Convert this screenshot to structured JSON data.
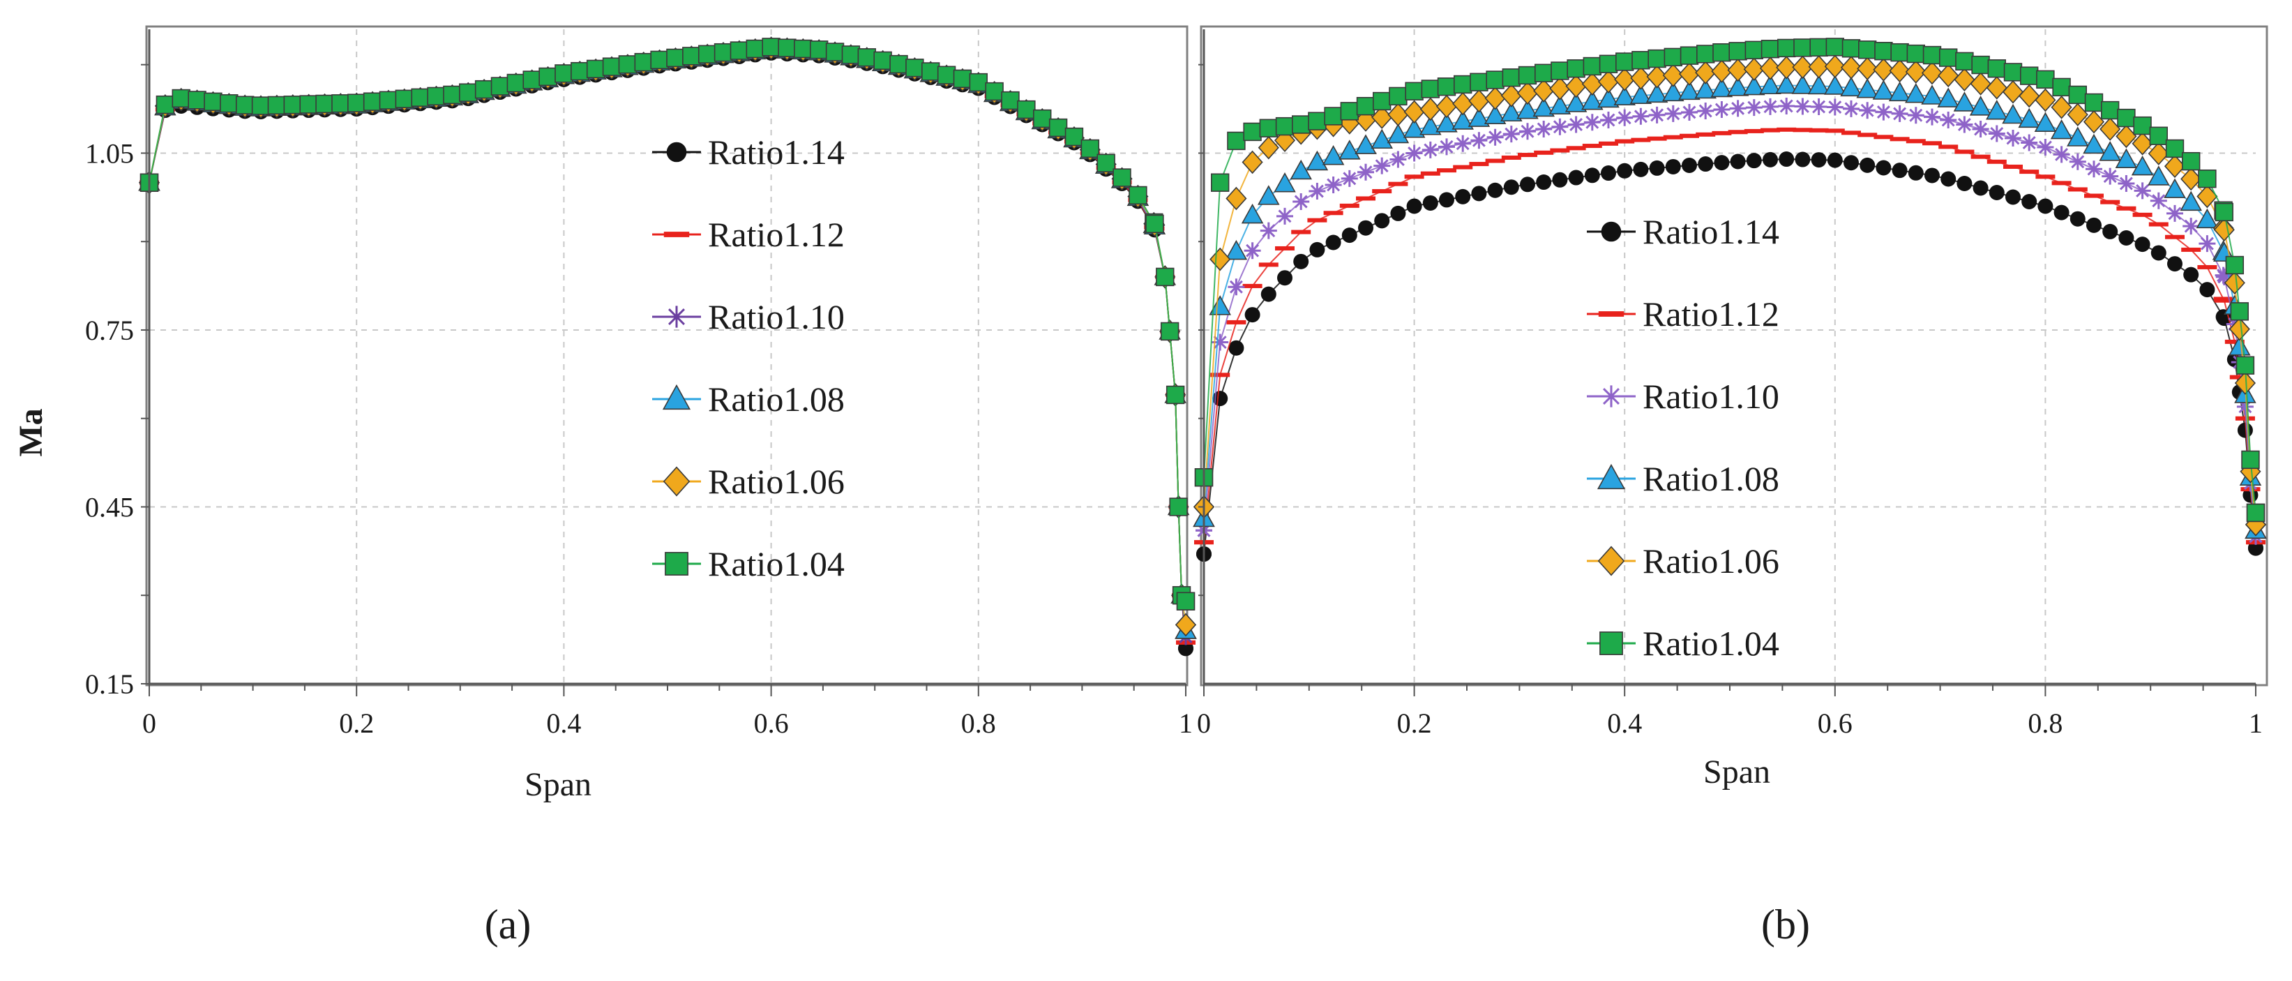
{
  "chart_data": [
    {
      "panel": "(a)",
      "type": "scatter",
      "xlabel": "Span",
      "ylabel": "Ma",
      "xlim": [
        0,
        1
      ],
      "ylim": [
        0.15,
        1.26
      ],
      "xticks": [
        "0",
        "0.2",
        "0.4",
        "0.6",
        "0.8",
        "1"
      ],
      "yticks": [
        "0.15",
        "0.45",
        "0.75",
        "1.05"
      ],
      "grid": true,
      "legend_position": "center-right",
      "series": [
        {
          "name": "Ratio1.14",
          "color": "#111111",
          "marker": "circle",
          "line": "#111111",
          "x": [
            0,
            0.01,
            0.03,
            0.1,
            0.2,
            0.3,
            0.4,
            0.5,
            0.6,
            0.65,
            0.7,
            0.8,
            0.9,
            0.95,
            0.97,
            0.98,
            0.99,
            0.993,
            0.996,
            1
          ],
          "y": [
            1.0,
            1.12,
            1.13,
            1.12,
            1.125,
            1.14,
            1.175,
            1.2,
            1.22,
            1.215,
            1.2,
            1.16,
            1.06,
            0.98,
            0.92,
            0.84,
            0.64,
            0.45,
            0.3,
            0.21
          ]
        },
        {
          "name": "Ratio1.12",
          "color": "#e8221c",
          "marker": "dash",
          "line": "#e8221c",
          "x": [
            0,
            0.01,
            0.03,
            0.1,
            0.2,
            0.3,
            0.4,
            0.5,
            0.6,
            0.65,
            0.7,
            0.8,
            0.9,
            0.95,
            0.97,
            0.98,
            0.99,
            0.993,
            0.996,
            1
          ],
          "y": [
            1.0,
            1.12,
            1.135,
            1.122,
            1.127,
            1.142,
            1.177,
            1.202,
            1.222,
            1.217,
            1.202,
            1.162,
            1.062,
            0.982,
            0.922,
            0.84,
            0.64,
            0.45,
            0.3,
            0.22
          ]
        },
        {
          "name": "Ratio1.10",
          "color": "#6b3fa0",
          "marker": "star",
          "line": "#6b3fa0",
          "x": [
            0,
            0.01,
            0.03,
            0.1,
            0.2,
            0.3,
            0.4,
            0.5,
            0.6,
            0.65,
            0.7,
            0.8,
            0.9,
            0.95,
            0.97,
            0.98,
            0.99,
            0.993,
            0.996,
            1
          ],
          "y": [
            1.0,
            1.122,
            1.137,
            1.124,
            1.129,
            1.144,
            1.179,
            1.204,
            1.224,
            1.219,
            1.204,
            1.164,
            1.064,
            0.984,
            0.924,
            0.84,
            0.64,
            0.45,
            0.3,
            0.23
          ]
        },
        {
          "name": "Ratio1.08",
          "color": "#29a3e0",
          "marker": "triangle",
          "line": "#29a3e0",
          "x": [
            0,
            0.01,
            0.03,
            0.1,
            0.2,
            0.3,
            0.4,
            0.5,
            0.6,
            0.65,
            0.7,
            0.8,
            0.9,
            0.95,
            0.97,
            0.98,
            0.99,
            0.993,
            0.996,
            1
          ],
          "y": [
            1.0,
            1.124,
            1.139,
            1.126,
            1.131,
            1.146,
            1.181,
            1.206,
            1.226,
            1.221,
            1.206,
            1.166,
            1.066,
            0.986,
            0.926,
            0.84,
            0.64,
            0.45,
            0.3,
            0.24
          ]
        },
        {
          "name": "Ratio1.06",
          "color": "#f0a81c",
          "marker": "diamond",
          "line": "#f0a81c",
          "x": [
            0,
            0.01,
            0.03,
            0.1,
            0.2,
            0.3,
            0.4,
            0.5,
            0.6,
            0.65,
            0.7,
            0.8,
            0.9,
            0.95,
            0.97,
            0.98,
            0.99,
            0.993,
            0.996,
            1
          ],
          "y": [
            1.0,
            1.126,
            1.141,
            1.128,
            1.133,
            1.148,
            1.183,
            1.208,
            1.228,
            1.223,
            1.208,
            1.168,
            1.068,
            0.988,
            0.928,
            0.84,
            0.64,
            0.45,
            0.3,
            0.25
          ]
        },
        {
          "name": "Ratio1.04",
          "color": "#1eaa4a",
          "marker": "square",
          "line": "#1eaa4a",
          "x": [
            0,
            0.01,
            0.03,
            0.1,
            0.2,
            0.3,
            0.4,
            0.5,
            0.6,
            0.65,
            0.7,
            0.8,
            0.9,
            0.95,
            0.97,
            0.98,
            0.99,
            0.993,
            0.996,
            1
          ],
          "y": [
            1.0,
            1.128,
            1.143,
            1.13,
            1.135,
            1.15,
            1.185,
            1.21,
            1.23,
            1.225,
            1.21,
            1.17,
            1.07,
            0.99,
            0.93,
            0.84,
            0.64,
            0.45,
            0.3,
            0.29
          ]
        }
      ]
    },
    {
      "panel": "(b)",
      "type": "scatter",
      "xlabel": "Span",
      "ylabel": "",
      "xlim": [
        0,
        1
      ],
      "ylim": [
        0.15,
        1.26
      ],
      "xticks": [
        "0",
        "0.2",
        "0.4",
        "0.6",
        "0.8",
        "1"
      ],
      "yticks": [],
      "grid": true,
      "legend_position": "center",
      "series": [
        {
          "name": "Ratio1.14",
          "color": "#111111",
          "marker": "circle",
          "line": "#111111",
          "x": [
            0,
            0.01,
            0.02,
            0.05,
            0.1,
            0.2,
            0.3,
            0.4,
            0.5,
            0.55,
            0.6,
            0.7,
            0.8,
            0.9,
            0.95,
            0.97,
            0.98,
            0.99,
            0.995,
            1
          ],
          "y": [
            0.37,
            0.58,
            0.68,
            0.79,
            0.88,
            0.96,
            0.995,
            1.02,
            1.035,
            1.04,
            1.038,
            1.01,
            0.96,
            0.89,
            0.83,
            0.77,
            0.7,
            0.58,
            0.47,
            0.38
          ]
        },
        {
          "name": "Ratio1.12",
          "color": "#e8221c",
          "marker": "dash",
          "line": "#e8221c",
          "x": [
            0,
            0.01,
            0.02,
            0.05,
            0.1,
            0.2,
            0.3,
            0.4,
            0.5,
            0.55,
            0.6,
            0.7,
            0.8,
            0.9,
            0.95,
            0.97,
            0.98,
            0.99,
            0.995,
            1
          ],
          "y": [
            0.39,
            0.62,
            0.72,
            0.84,
            0.93,
            1.01,
            1.045,
            1.07,
            1.085,
            1.09,
            1.088,
            1.065,
            1.01,
            0.94,
            0.87,
            0.8,
            0.73,
            0.6,
            0.48,
            0.39
          ]
        },
        {
          "name": "Ratio1.10",
          "color": "#8e63c8",
          "marker": "star",
          "line": "#8e63c8",
          "x": [
            0,
            0.01,
            0.02,
            0.05,
            0.1,
            0.2,
            0.3,
            0.4,
            0.5,
            0.55,
            0.6,
            0.7,
            0.8,
            0.9,
            0.95,
            0.97,
            0.98,
            0.99,
            0.995,
            1
          ],
          "y": [
            0.41,
            0.67,
            0.78,
            0.9,
            0.98,
            1.05,
            1.085,
            1.11,
            1.125,
            1.13,
            1.128,
            1.11,
            1.06,
            0.98,
            0.91,
            0.84,
            0.76,
            0.62,
            0.49,
            0.4
          ]
        },
        {
          "name": "Ratio1.08",
          "color": "#29a3e0",
          "marker": "triangle",
          "line": "#29a3e0",
          "x": [
            0,
            0.01,
            0.02,
            0.05,
            0.1,
            0.2,
            0.3,
            0.4,
            0.5,
            0.55,
            0.6,
            0.7,
            0.8,
            0.9,
            0.95,
            0.97,
            0.98,
            0.99,
            0.995,
            1
          ],
          "y": [
            0.43,
            0.73,
            0.84,
            0.96,
            1.03,
            1.09,
            1.12,
            1.145,
            1.16,
            1.165,
            1.163,
            1.145,
            1.1,
            1.02,
            0.95,
            0.88,
            0.79,
            0.64,
            0.5,
            0.41
          ]
        },
        {
          "name": "Ratio1.06",
          "color": "#f0a81c",
          "marker": "diamond",
          "line": "#f0a81c",
          "x": [
            0,
            0.01,
            0.02,
            0.05,
            0.1,
            0.2,
            0.3,
            0.4,
            0.5,
            0.55,
            0.6,
            0.7,
            0.8,
            0.9,
            0.95,
            0.97,
            0.98,
            0.99,
            0.995,
            1
          ],
          "y": [
            0.45,
            0.8,
            0.93,
            1.05,
            1.09,
            1.12,
            1.15,
            1.175,
            1.19,
            1.195,
            1.197,
            1.185,
            1.14,
            1.06,
            0.99,
            0.92,
            0.83,
            0.66,
            0.51,
            0.42
          ]
        },
        {
          "name": "Ratio1.04",
          "color": "#1eaa4a",
          "marker": "square",
          "line": "#1eaa4a",
          "x": [
            0,
            0.01,
            0.02,
            0.05,
            0.1,
            0.2,
            0.3,
            0.4,
            0.5,
            0.55,
            0.6,
            0.7,
            0.8,
            0.9,
            0.95,
            0.97,
            0.98,
            0.99,
            0.995,
            1
          ],
          "y": [
            0.5,
            0.93,
            1.06,
            1.09,
            1.1,
            1.155,
            1.18,
            1.205,
            1.222,
            1.228,
            1.23,
            1.215,
            1.175,
            1.09,
            1.02,
            0.95,
            0.86,
            0.69,
            0.53,
            0.44
          ]
        }
      ]
    }
  ]
}
